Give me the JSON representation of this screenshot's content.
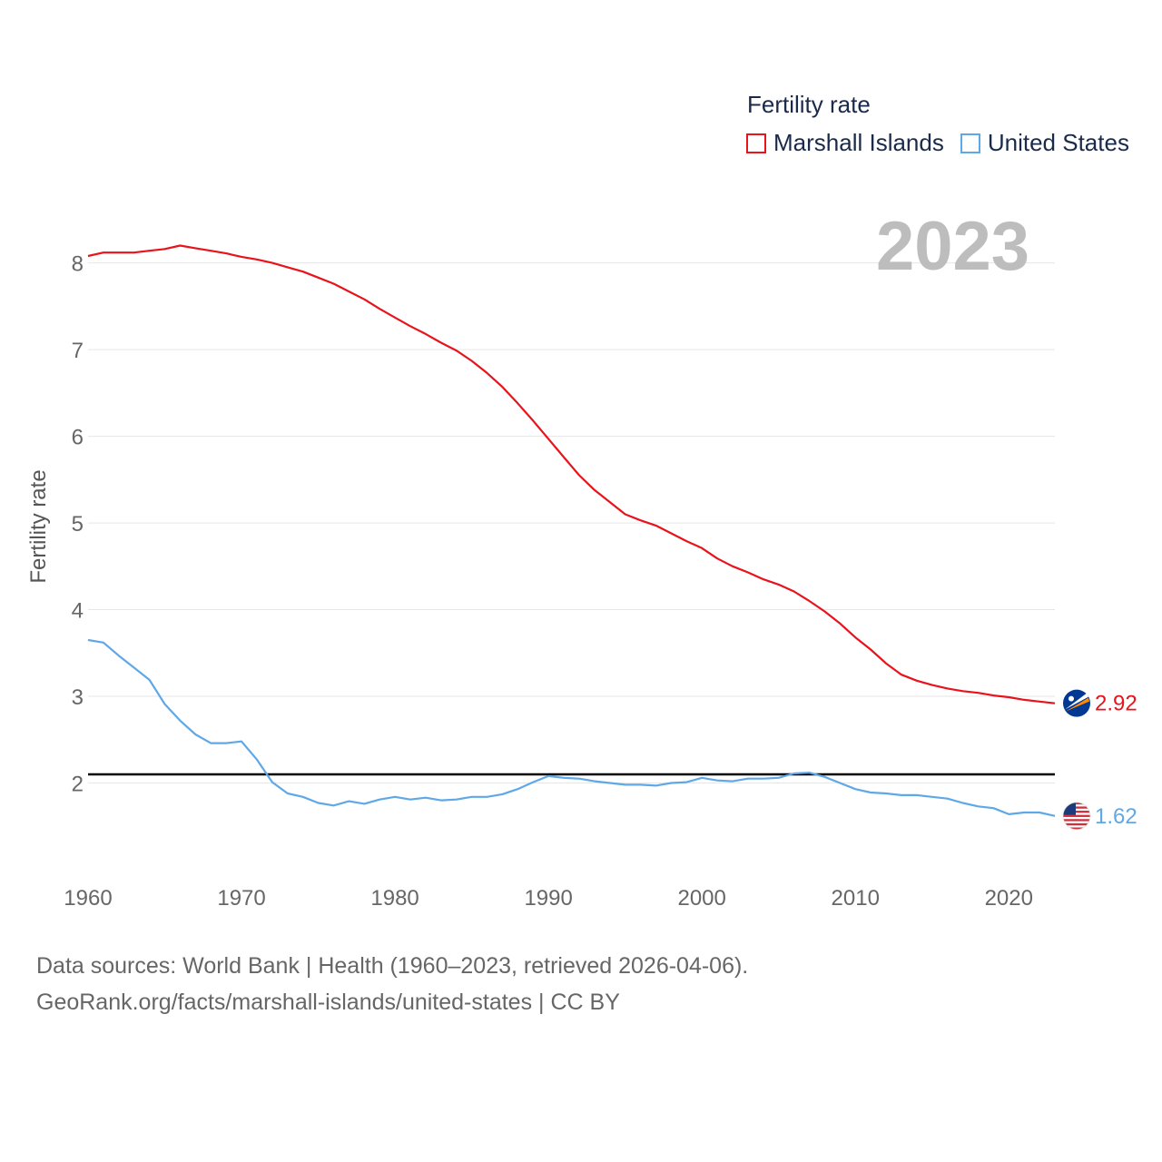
{
  "legend": {
    "title": "Fertility rate"
  },
  "big_year": "2023",
  "footer": {
    "line1": "Data sources: World Bank | Health (1960–2023, retrieved 2026-04-06).",
    "line2": "GeoRank.org/facts/marshall-islands/united-states | CC BY"
  },
  "colors": {
    "marshall": "#e8131b",
    "us": "#5fa8e8",
    "reference": "#000000"
  },
  "icons": {
    "marshall": "marshall-islands-flag-icon",
    "us": "united-states-flag-icon"
  },
  "chart_data": {
    "type": "line",
    "title": "",
    "xlabel": "",
    "ylabel": "Fertility rate",
    "xlim": [
      1960,
      2023
    ],
    "ylim": [
      1.0,
      8.75
    ],
    "xticks": [
      1960,
      1970,
      1980,
      1990,
      2000,
      2010,
      2020
    ],
    "yticks": [
      2,
      3,
      4,
      5,
      6,
      7,
      8
    ],
    "reference_line": 2.1,
    "x": [
      1960,
      1961,
      1962,
      1963,
      1964,
      1965,
      1966,
      1967,
      1968,
      1969,
      1970,
      1971,
      1972,
      1973,
      1974,
      1975,
      1976,
      1977,
      1978,
      1979,
      1980,
      1981,
      1982,
      1983,
      1984,
      1985,
      1986,
      1987,
      1988,
      1989,
      1990,
      1991,
      1992,
      1993,
      1994,
      1995,
      1996,
      1997,
      1998,
      1999,
      2000,
      2001,
      2002,
      2003,
      2004,
      2005,
      2006,
      2007,
      2008,
      2009,
      2010,
      2011,
      2012,
      2013,
      2014,
      2015,
      2016,
      2017,
      2018,
      2019,
      2020,
      2021,
      2022,
      2023
    ],
    "series": [
      {
        "name": "Marshall Islands",
        "end_label": "2.92",
        "values": [
          8.08,
          8.12,
          8.12,
          8.12,
          8.14,
          8.16,
          8.2,
          8.17,
          8.14,
          8.11,
          8.07,
          8.04,
          8.0,
          7.95,
          7.9,
          7.83,
          7.76,
          7.67,
          7.58,
          7.47,
          7.37,
          7.27,
          7.18,
          7.08,
          6.99,
          6.87,
          6.73,
          6.57,
          6.38,
          6.18,
          5.97,
          5.76,
          5.55,
          5.38,
          5.24,
          5.1,
          5.03,
          4.97,
          4.88,
          4.79,
          4.71,
          4.59,
          4.5,
          4.43,
          4.35,
          4.29,
          4.21,
          4.1,
          3.98,
          3.84,
          3.68,
          3.54,
          3.38,
          3.25,
          3.18,
          3.13,
          3.09,
          3.06,
          3.04,
          3.01,
          2.99,
          2.96,
          2.94,
          2.92
        ]
      },
      {
        "name": "United States",
        "end_label": "1.62",
        "values": [
          3.65,
          3.62,
          3.47,
          3.33,
          3.19,
          2.91,
          2.72,
          2.56,
          2.46,
          2.46,
          2.48,
          2.27,
          2.01,
          1.88,
          1.84,
          1.77,
          1.74,
          1.79,
          1.76,
          1.81,
          1.84,
          1.81,
          1.83,
          1.8,
          1.81,
          1.84,
          1.84,
          1.87,
          1.93,
          2.01,
          2.08,
          2.06,
          2.05,
          2.02,
          2.0,
          1.98,
          1.98,
          1.97,
          2.0,
          2.01,
          2.06,
          2.03,
          2.02,
          2.05,
          2.05,
          2.06,
          2.11,
          2.12,
          2.07,
          2.0,
          1.93,
          1.89,
          1.88,
          1.86,
          1.86,
          1.84,
          1.82,
          1.77,
          1.73,
          1.71,
          1.64,
          1.66,
          1.66,
          1.62
        ]
      }
    ]
  }
}
